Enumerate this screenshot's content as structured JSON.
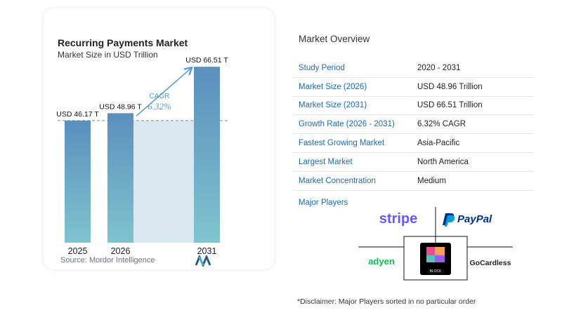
{
  "chart_data": {
    "type": "bar",
    "title": "Recurring Payments Market",
    "subtitle": "Market Size in USD Trillion",
    "categories": [
      "2025",
      "2026",
      "2031"
    ],
    "values": [
      46.17,
      48.96,
      66.51
    ],
    "data_labels": [
      "USD 46.17 T",
      "USD 48.96 T",
      "USD 66.51 T"
    ],
    "annotation": {
      "label": "CAGR",
      "value": "6.32%"
    },
    "ylim": [
      0,
      70
    ],
    "colors": {
      "bar_top": "#5b8fbd",
      "bar_bottom": "#7fc4cf",
      "band": "#dbe8f2",
      "arrow": "#4e9bd1"
    }
  },
  "source": {
    "label": "Source:",
    "value": "Mordor Intelligence"
  },
  "overview": {
    "title": "Market Overview",
    "rows": [
      {
        "label": "Study Period",
        "value": "2020 - 2031"
      },
      {
        "label": "Market Size (2026)",
        "value": "USD 48.96 Trillion"
      },
      {
        "label": "Market Size (2031)",
        "value": "USD 66.51 Trillion"
      },
      {
        "label": "Growth Rate (2026 - 2031)",
        "value": "6.32% CAGR"
      },
      {
        "label": "Fastest Growing Market",
        "value": "Asia-Pacific"
      },
      {
        "label": "Largest Market",
        "value": "North America"
      },
      {
        "label": "Market Concentration",
        "value": "Medium"
      }
    ]
  },
  "players": {
    "title": "Major Players",
    "logos": [
      "stripe",
      "PayPal",
      "adyen",
      "BLOCK",
      "GoCardless"
    ]
  },
  "disclaimer": "*Disclaimer: Major Players sorted in no particular order"
}
